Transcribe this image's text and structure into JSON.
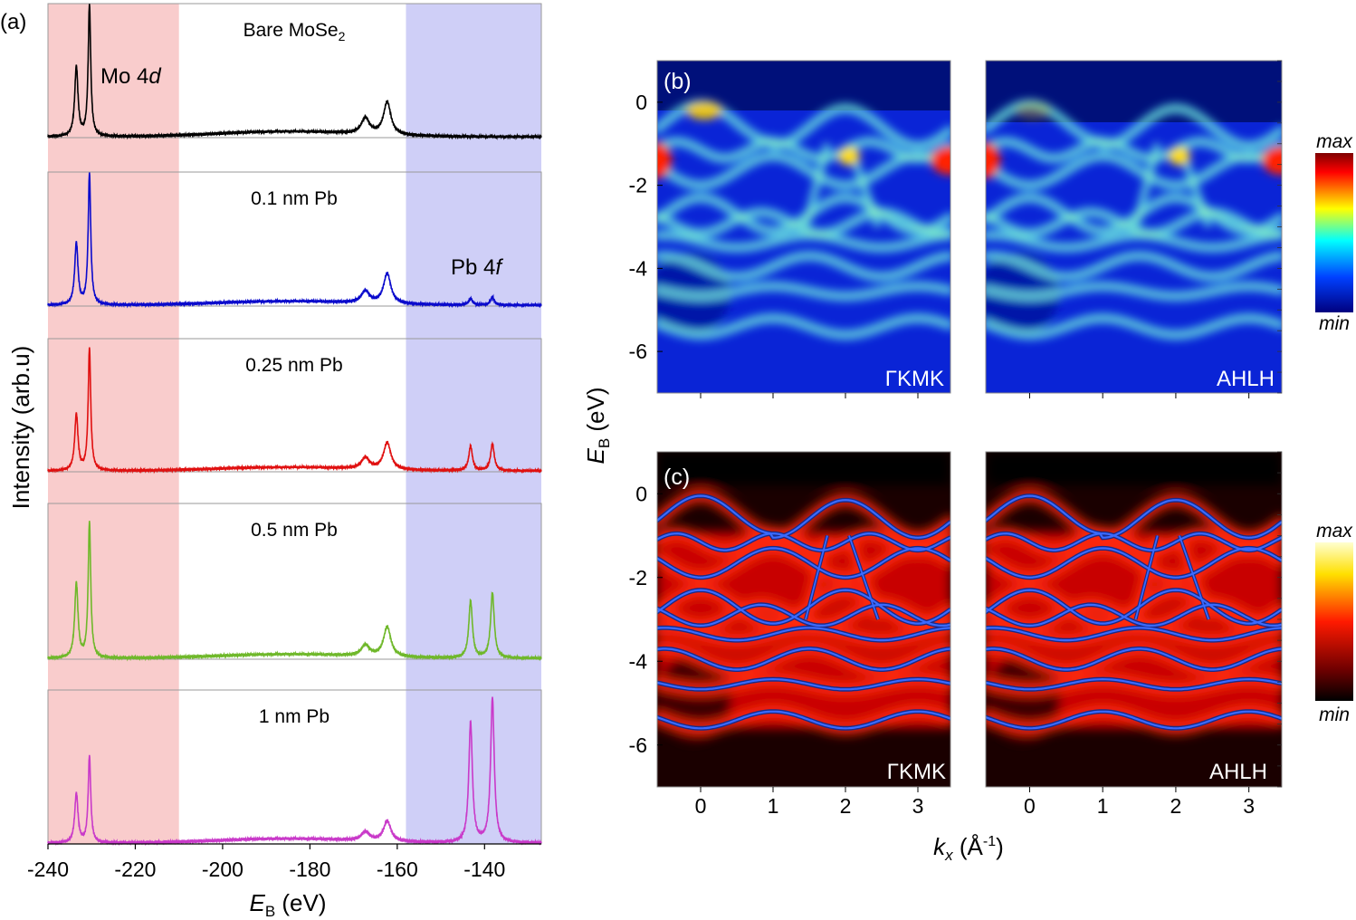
{
  "panel_labels": {
    "a": "(a)",
    "b": "(b)",
    "c": "(c)"
  },
  "chart_data": [
    {
      "type": "line",
      "panel": "(a)",
      "xlabel": "E",
      "xlabel_sub": "B",
      "xlabel_unit": " (eV)",
      "ylabel": "Intensity (arb.u)",
      "xlim": [
        -240,
        -127
      ],
      "xticks": [
        -240,
        -220,
        -200,
        -180,
        -160,
        -140
      ],
      "xtick_labels": [
        "-240",
        "-220",
        "-200",
        "-180",
        "-160",
        "-140"
      ],
      "shaded_regions": [
        {
          "from": -240,
          "to": -210,
          "color": "#f9cccc"
        },
        {
          "from": -158,
          "to": -127,
          "color": "#cfcff7"
        }
      ],
      "annotations": {
        "mo4d": {
          "text": "Mo 4",
          "italic": "d"
        },
        "pb4f": {
          "text": "Pb 4",
          "italic": "f"
        }
      },
      "peaks": {
        "mo": [
          {
            "x": -233.5,
            "w": 0.45
          },
          {
            "x": -230.5,
            "w": 0.35
          }
        ],
        "se": [
          {
            "x": -167.3,
            "w": 1.1
          },
          {
            "x": -162.3,
            "w": 1.0
          }
        ],
        "pb": [
          {
            "x": -143.2,
            "w": 0.5
          },
          {
            "x": -138.2,
            "w": 0.5
          }
        ]
      },
      "series": [
        {
          "name": "Bare MoSe",
          "name_sub": "2",
          "color": "#000000",
          "mo": [
            0.53,
            1.0
          ],
          "se": [
            0.12,
            0.25
          ],
          "pb": [
            0,
            0
          ],
          "bg": 0.04
        },
        {
          "name": "0.1 nm Pb",
          "color": "#0a0acc",
          "mo": [
            0.47,
            1.0
          ],
          "se": [
            0.09,
            0.23
          ],
          "pb": [
            0.05,
            0.06
          ],
          "bg": 0.03
        },
        {
          "name": "0.25 nm Pb",
          "color": "#e01010",
          "mo": [
            0.46,
            1.0
          ],
          "se": [
            0.09,
            0.22
          ],
          "pb": [
            0.2,
            0.22
          ],
          "bg": 0.03
        },
        {
          "name": "0.5 nm Pb",
          "color": "#6fb82a",
          "mo": [
            0.55,
            1.0
          ],
          "se": [
            0.08,
            0.22
          ],
          "pb": [
            0.42,
            0.48
          ],
          "bg": 0.03
        },
        {
          "name": "1 nm Pb",
          "color": "#c93ac9",
          "mo": [
            0.34,
            0.6
          ],
          "se": [
            0.06,
            0.14
          ],
          "pb": [
            0.83,
            1.0
          ],
          "bg": 0.03
        }
      ]
    },
    {
      "type": "heatmap",
      "panel": "(b)",
      "ylabel": "E",
      "ylabel_sub": "B",
      "ylabel_unit": " (eV)",
      "ylim": [
        -7,
        1
      ],
      "yticks": [
        0,
        -2,
        -4,
        -6
      ],
      "ytick_labels": [
        "0",
        "-2",
        "-4",
        "-6"
      ],
      "xlim": [
        -0.6,
        3.45
      ],
      "colormap": "jet",
      "colorbar": {
        "max": "max",
        "min": "min"
      },
      "subplots": [
        {
          "label": "ΓKMK"
        },
        {
          "label": "AHLH"
        }
      ]
    },
    {
      "type": "heatmap",
      "panel": "(c)",
      "xlabel": "k",
      "xlabel_sub": "x",
      "xlabel_unit": " (Å",
      "xlabel_sup": "-1",
      "xlabel_close": ")",
      "ylim": [
        -7,
        1
      ],
      "yticks": [
        0,
        -2,
        -4,
        -6
      ],
      "ytick_labels": [
        "0",
        "-2",
        "-4",
        "-6"
      ],
      "xlim": [
        -0.6,
        3.45
      ],
      "xticks": [
        0,
        1,
        2,
        3
      ],
      "xtick_labels": [
        "0",
        "1",
        "2",
        "3"
      ],
      "colormap": "hot",
      "colorbar": {
        "max": "max",
        "min": "min"
      },
      "subplots": [
        {
          "label": "ΓKMK"
        },
        {
          "label": "AHLH"
        }
      ]
    }
  ]
}
